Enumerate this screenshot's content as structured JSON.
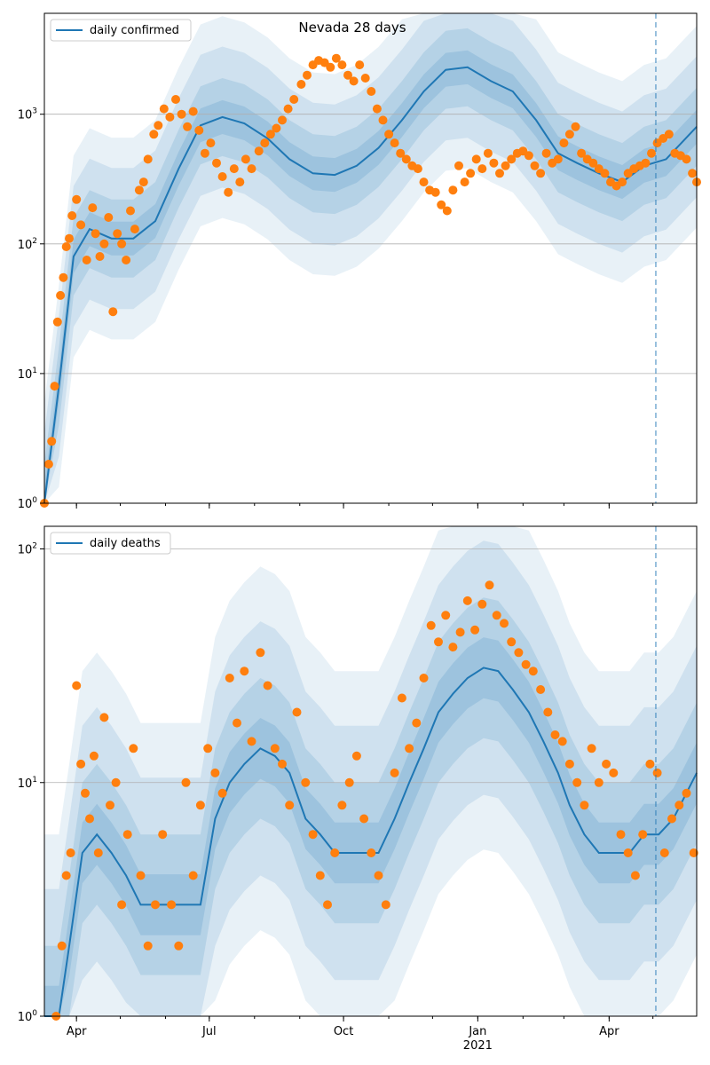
{
  "figure": {
    "colors": {
      "line": "#1f77b4",
      "points": "#ff7f0e",
      "band": "#1f77b4",
      "grid": "#b0b0b0",
      "vline": "#1f77b4"
    }
  },
  "chart_data": [
    {
      "type": "line",
      "title": "Nevada 28 days",
      "xlabel": "",
      "ylabel": "",
      "y_scale": "log",
      "ylim": [
        1,
        6000
      ],
      "x_range": [
        "2020-03-10",
        "2021-05-31"
      ],
      "x_ticks": [
        {
          "date": "2020-04-01",
          "label": "Apr"
        },
        {
          "date": "2020-07-01",
          "label": "Jul"
        },
        {
          "date": "2020-10-01",
          "label": "Oct"
        },
        {
          "date": "2021-01-01",
          "label": "Jan",
          "sublabel": "2021"
        },
        {
          "date": "2021-04-01",
          "label": "Apr"
        }
      ],
      "y_ticks": [
        {
          "value": 1,
          "label": "10^0"
        },
        {
          "value": 10,
          "label": "10^1"
        },
        {
          "value": 100,
          "label": "10^2"
        },
        {
          "value": 1000,
          "label": "10^3"
        }
      ],
      "grid": "horizontal",
      "legend": {
        "placement": "top-left",
        "entries": [
          "daily confirmed"
        ]
      },
      "forecast_start": "2021-05-03",
      "series": [
        {
          "name": "daily confirmed",
          "kind": "model_line_with_bands",
          "x": [
            "2020-03-10",
            "2020-03-20",
            "2020-03-30",
            "2020-04-10",
            "2020-04-25",
            "2020-05-10",
            "2020-05-25",
            "2020-06-10",
            "2020-06-25",
            "2020-07-10",
            "2020-07-25",
            "2020-08-10",
            "2020-08-25",
            "2020-09-10",
            "2020-09-25",
            "2020-10-10",
            "2020-10-25",
            "2020-11-10",
            "2020-11-25",
            "2020-12-10",
            "2020-12-25",
            "2021-01-10",
            "2021-01-25",
            "2021-02-10",
            "2021-02-25",
            "2021-03-10",
            "2021-03-25",
            "2021-04-10",
            "2021-04-25",
            "2021-05-10",
            "2021-05-31"
          ],
          "y": [
            1,
            8,
            80,
            130,
            110,
            110,
            150,
            380,
            820,
            950,
            850,
            650,
            450,
            350,
            340,
            400,
            550,
            900,
            1500,
            2200,
            2300,
            1800,
            1500,
            900,
            500,
            420,
            350,
            300,
            400,
            450,
            800
          ]
        },
        {
          "name": "observed",
          "kind": "scatter",
          "x": [
            "2020-03-10",
            "2020-03-13",
            "2020-03-15",
            "2020-03-17",
            "2020-03-19",
            "2020-03-21",
            "2020-03-23",
            "2020-03-25",
            "2020-03-27",
            "2020-03-29",
            "2020-04-01",
            "2020-04-04",
            "2020-04-08",
            "2020-04-12",
            "2020-04-14",
            "2020-04-17",
            "2020-04-20",
            "2020-04-23",
            "2020-04-26",
            "2020-04-29",
            "2020-05-02",
            "2020-05-05",
            "2020-05-08",
            "2020-05-11",
            "2020-05-14",
            "2020-05-17",
            "2020-05-20",
            "2020-05-24",
            "2020-05-27",
            "2020-05-31",
            "2020-06-04",
            "2020-06-08",
            "2020-06-12",
            "2020-06-16",
            "2020-06-20",
            "2020-06-24",
            "2020-06-28",
            "2020-07-02",
            "2020-07-06",
            "2020-07-10",
            "2020-07-14",
            "2020-07-18",
            "2020-07-22",
            "2020-07-26",
            "2020-07-30",
            "2020-08-04",
            "2020-08-08",
            "2020-08-12",
            "2020-08-16",
            "2020-08-20",
            "2020-08-24",
            "2020-08-28",
            "2020-09-02",
            "2020-09-06",
            "2020-09-10",
            "2020-09-14",
            "2020-09-18",
            "2020-09-22",
            "2020-09-26",
            "2020-09-30",
            "2020-10-04",
            "2020-10-08",
            "2020-10-12",
            "2020-10-16",
            "2020-10-20",
            "2020-10-24",
            "2020-10-28",
            "2020-11-01",
            "2020-11-05",
            "2020-11-09",
            "2020-11-13",
            "2020-11-17",
            "2020-11-21",
            "2020-11-25",
            "2020-11-29",
            "2020-12-03",
            "2020-12-07",
            "2020-12-11",
            "2020-12-15",
            "2020-12-19",
            "2020-12-23",
            "2020-12-27",
            "2020-12-31",
            "2021-01-04",
            "2021-01-08",
            "2021-01-12",
            "2021-01-16",
            "2021-01-20",
            "2021-01-24",
            "2021-01-28",
            "2021-02-01",
            "2021-02-05",
            "2021-02-09",
            "2021-02-13",
            "2021-02-17",
            "2021-02-21",
            "2021-02-25",
            "2021-03-01",
            "2021-03-05",
            "2021-03-09",
            "2021-03-13",
            "2021-03-17",
            "2021-03-21",
            "2021-03-25",
            "2021-03-29",
            "2021-04-02",
            "2021-04-06",
            "2021-04-10",
            "2021-04-14",
            "2021-04-18",
            "2021-04-22",
            "2021-04-26",
            "2021-04-30",
            "2021-05-04",
            "2021-05-08",
            "2021-05-12",
            "2021-05-16",
            "2021-05-20",
            "2021-05-24",
            "2021-05-28",
            "2021-05-31"
          ],
          "y": [
            1,
            2,
            3,
            8,
            25,
            40,
            55,
            95,
            110,
            165,
            220,
            140,
            75,
            190,
            120,
            80,
            100,
            160,
            30,
            120,
            100,
            75,
            180,
            130,
            260,
            300,
            450,
            700,
            820,
            1100,
            950,
            1300,
            1000,
            800,
            1050,
            750,
            500,
            600,
            420,
            330,
            250,
            380,
            300,
            450,
            380,
            520,
            600,
            700,
            780,
            900,
            1100,
            1300,
            1700,
            2000,
            2400,
            2600,
            2500,
            2300,
            2700,
            2400,
            2000,
            1800,
            2400,
            1900,
            1500,
            1100,
            900,
            700,
            600,
            500,
            450,
            400,
            380,
            300,
            260,
            250,
            200,
            180,
            260,
            400,
            300,
            350,
            450,
            380,
            500,
            420,
            350,
            400,
            450,
            500,
            520,
            480,
            400,
            350,
            500,
            420,
            450,
            600,
            700,
            800,
            500,
            450,
            420,
            380,
            350,
            300,
            280,
            300,
            350,
            380,
            400,
            420,
            500,
            600,
            650,
            700,
            500,
            480,
            450,
            350,
            300
          ]
        }
      ]
    },
    {
      "type": "line",
      "title": "",
      "xlabel": "",
      "ylabel": "",
      "y_scale": "log",
      "ylim": [
        1,
        125
      ],
      "x_range": [
        "2020-03-10",
        "2021-05-31"
      ],
      "x_ticks": [
        {
          "date": "2020-04-01",
          "label": "Apr"
        },
        {
          "date": "2020-07-01",
          "label": "Jul"
        },
        {
          "date": "2020-10-01",
          "label": "Oct"
        },
        {
          "date": "2021-01-01",
          "label": "Jan",
          "sublabel": "2021"
        },
        {
          "date": "2021-04-01",
          "label": "Apr"
        }
      ],
      "y_ticks": [
        {
          "value": 1,
          "label": "10^0"
        },
        {
          "value": 10,
          "label": "10^1"
        },
        {
          "value": 100,
          "label": "10^2"
        }
      ],
      "grid": "horizontal",
      "legend": {
        "placement": "top-left",
        "entries": [
          "daily deaths"
        ]
      },
      "forecast_start": "2021-05-03",
      "series": [
        {
          "name": "daily deaths",
          "kind": "model_line_with_bands",
          "x": [
            "2020-03-10",
            "2020-03-20",
            "2020-03-27",
            "2020-04-05",
            "2020-04-15",
            "2020-04-25",
            "2020-05-05",
            "2020-05-15",
            "2020-05-25",
            "2020-06-05",
            "2020-06-15",
            "2020-06-25",
            "2020-07-05",
            "2020-07-15",
            "2020-07-25",
            "2020-08-05",
            "2020-08-15",
            "2020-08-25",
            "2020-09-05",
            "2020-09-15",
            "2020-09-25",
            "2020-10-05",
            "2020-10-15",
            "2020-10-25",
            "2020-11-05",
            "2020-11-15",
            "2020-11-25",
            "2020-12-05",
            "2020-12-15",
            "2020-12-25",
            "2021-01-05",
            "2021-01-15",
            "2021-01-25",
            "2021-02-05",
            "2021-02-15",
            "2021-02-25",
            "2021-03-05",
            "2021-03-15",
            "2021-03-25",
            "2021-04-05",
            "2021-04-15",
            "2021-04-25",
            "2021-05-05",
            "2021-05-15",
            "2021-05-31"
          ],
          "y": [
            1,
            1,
            2,
            5,
            6,
            5,
            4,
            3,
            3,
            3,
            3,
            3,
            7,
            10,
            12,
            14,
            13,
            11,
            7,
            6,
            5,
            5,
            5,
            5,
            7,
            10,
            14,
            20,
            24,
            28,
            31,
            30,
            25,
            20,
            15,
            11,
            8,
            6,
            5,
            5,
            5,
            6,
            6,
            7,
            11
          ]
        },
        {
          "name": "observed",
          "kind": "scatter",
          "x": [
            "2020-03-18",
            "2020-03-22",
            "2020-03-25",
            "2020-03-28",
            "2020-04-01",
            "2020-04-04",
            "2020-04-07",
            "2020-04-10",
            "2020-04-13",
            "2020-04-16",
            "2020-04-20",
            "2020-04-24",
            "2020-04-28",
            "2020-05-02",
            "2020-05-06",
            "2020-05-10",
            "2020-05-15",
            "2020-05-20",
            "2020-05-25",
            "2020-05-30",
            "2020-06-05",
            "2020-06-10",
            "2020-06-15",
            "2020-06-20",
            "2020-06-25",
            "2020-06-30",
            "2020-07-05",
            "2020-07-10",
            "2020-07-15",
            "2020-07-20",
            "2020-07-25",
            "2020-07-30",
            "2020-08-05",
            "2020-08-10",
            "2020-08-15",
            "2020-08-20",
            "2020-08-25",
            "2020-08-30",
            "2020-09-05",
            "2020-09-10",
            "2020-09-15",
            "2020-09-20",
            "2020-09-25",
            "2020-09-30",
            "2020-10-05",
            "2020-10-10",
            "2020-10-15",
            "2020-10-20",
            "2020-10-25",
            "2020-10-30",
            "2020-11-05",
            "2020-11-10",
            "2020-11-15",
            "2020-11-20",
            "2020-11-25",
            "2020-11-30",
            "2020-12-05",
            "2020-12-10",
            "2020-12-15",
            "2020-12-20",
            "2020-12-25",
            "2020-12-30",
            "2021-01-04",
            "2021-01-09",
            "2021-01-14",
            "2021-01-19",
            "2021-01-24",
            "2021-01-29",
            "2021-02-03",
            "2021-02-08",
            "2021-02-13",
            "2021-02-18",
            "2021-02-23",
            "2021-02-28",
            "2021-03-05",
            "2021-03-10",
            "2021-03-15",
            "2021-03-20",
            "2021-03-25",
            "2021-03-30",
            "2021-04-04",
            "2021-04-09",
            "2021-04-14",
            "2021-04-19",
            "2021-04-24",
            "2021-04-29",
            "2021-05-04",
            "2021-05-09",
            "2021-05-14",
            "2021-05-19",
            "2021-05-24",
            "2021-05-29"
          ],
          "y": [
            1,
            2,
            4,
            5,
            26,
            12,
            9,
            7,
            13,
            5,
            19,
            8,
            10,
            3,
            6,
            14,
            4,
            2,
            3,
            6,
            3,
            2,
            10,
            4,
            8,
            14,
            11,
            9,
            28,
            18,
            30,
            15,
            36,
            26,
            14,
            12,
            8,
            20,
            10,
            6,
            4,
            3,
            5,
            8,
            10,
            13,
            7,
            5,
            4,
            3,
            11,
            23,
            14,
            18,
            28,
            47,
            40,
            52,
            38,
            44,
            60,
            45,
            58,
            70,
            52,
            48,
            40,
            36,
            32,
            30,
            25,
            20,
            16,
            15,
            12,
            10,
            8,
            14,
            10,
            12,
            11,
            6,
            5,
            4,
            6,
            12,
            11,
            5,
            7,
            8,
            9,
            5
          ]
        }
      ]
    }
  ]
}
